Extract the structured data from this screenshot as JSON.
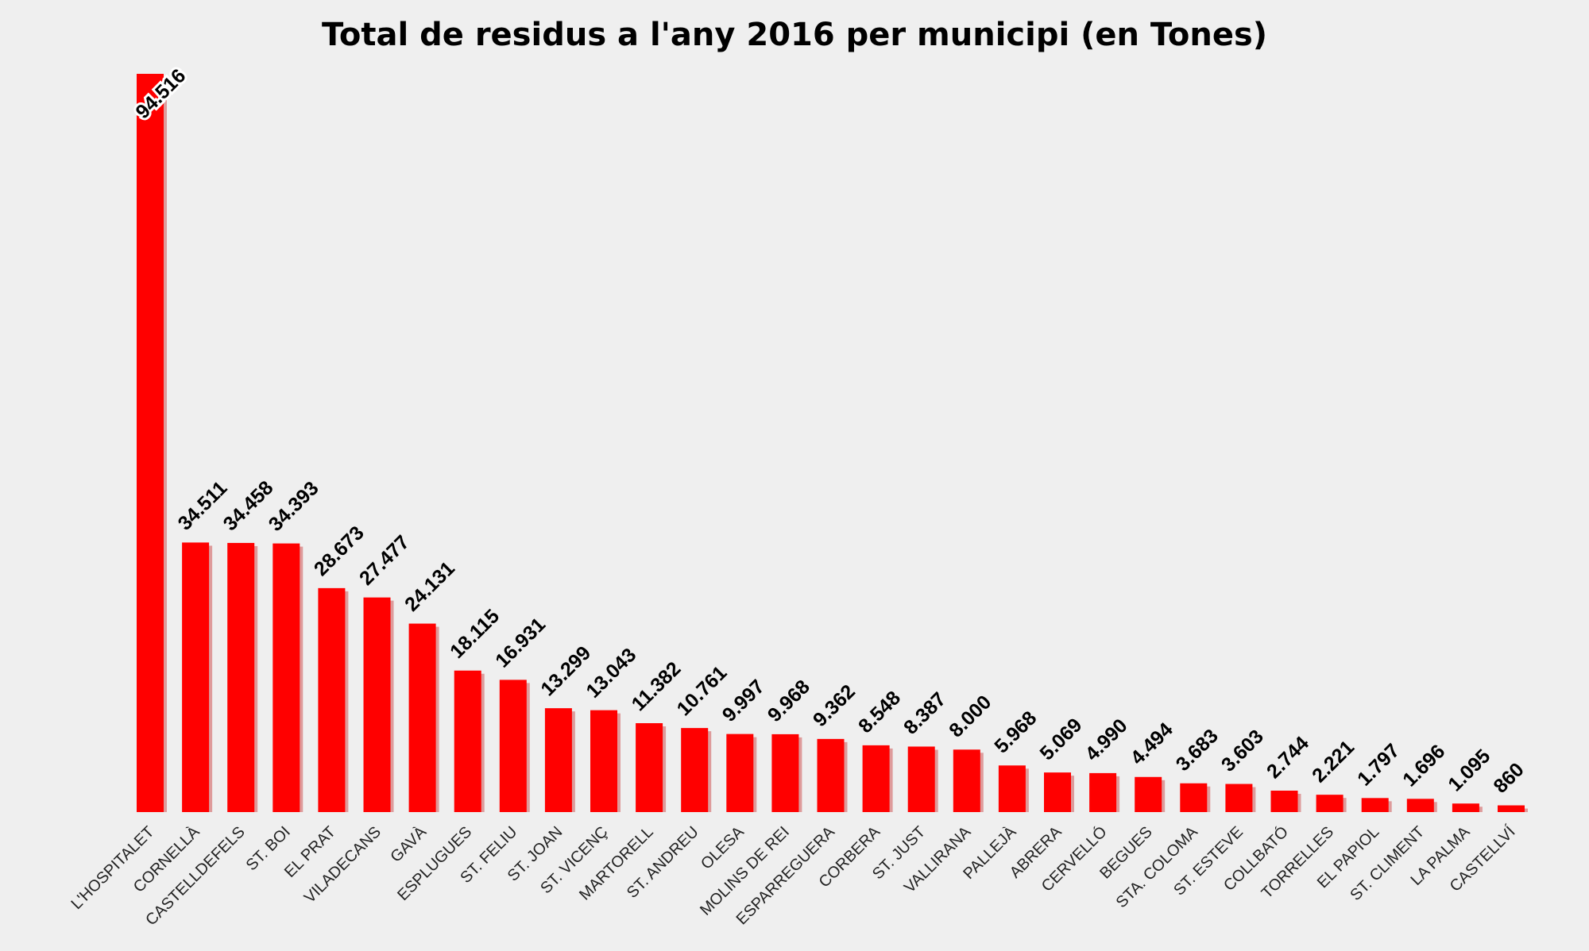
{
  "chart_data": {
    "type": "bar",
    "title": "Total de residus a l'any 2016 per municipi (en Tones)",
    "xlabel": "",
    "ylabel": "",
    "ylim": [
      0,
      94516
    ],
    "grid": false,
    "bar_color": "#ff0000",
    "background_color": "#efefef",
    "categories": [
      "L'HOSPITALET",
      "CORNELLÀ",
      "CASTELLDEFELS",
      "ST. BOI",
      "EL PRAT",
      "VILADECANS",
      "GAVÀ",
      "ESPLUGUES",
      "ST. FELIU",
      "ST. JOAN",
      "ST. VICENÇ",
      "MARTORELL",
      "ST. ANDREU",
      "OLESA",
      "MOLINS DE REI",
      "ESPARREGUERA",
      "CORBERA",
      "ST. JUST",
      "VALLIRANA",
      "PALLEJÀ",
      "ABRERA",
      "CERVELLÓ",
      "BEGUES",
      "STA. COLOMA",
      "ST. ESTEVE",
      "COLLBATÓ",
      "TORRELLES",
      "EL PAPIOL",
      "ST. CLIMENT",
      "LA PALMA",
      "CASTELLVÍ"
    ],
    "values": [
      94516,
      34511,
      34458,
      34393,
      28673,
      27477,
      24131,
      18115,
      16931,
      13299,
      13043,
      11382,
      10761,
      9997,
      9968,
      9362,
      8548,
      8387,
      8000,
      5968,
      5069,
      4990,
      4494,
      3683,
      3603,
      2744,
      2221,
      1797,
      1696,
      1095,
      860
    ],
    "labels": [
      "94.516",
      "34.511",
      "34.458",
      "34.393",
      "28.673",
      "27.477",
      "24.131",
      "18.115",
      "16.931",
      "13.299",
      "13.043",
      "11.382",
      "10.761",
      "9.997",
      "9.968",
      "9.362",
      "8.548",
      "8.387",
      "8.000",
      "5.968",
      "5.069",
      "4.990",
      "4.494",
      "3.683",
      "3.603",
      "2.744",
      "2.221",
      "1.797",
      "1.696",
      "1.095",
      "860"
    ]
  }
}
